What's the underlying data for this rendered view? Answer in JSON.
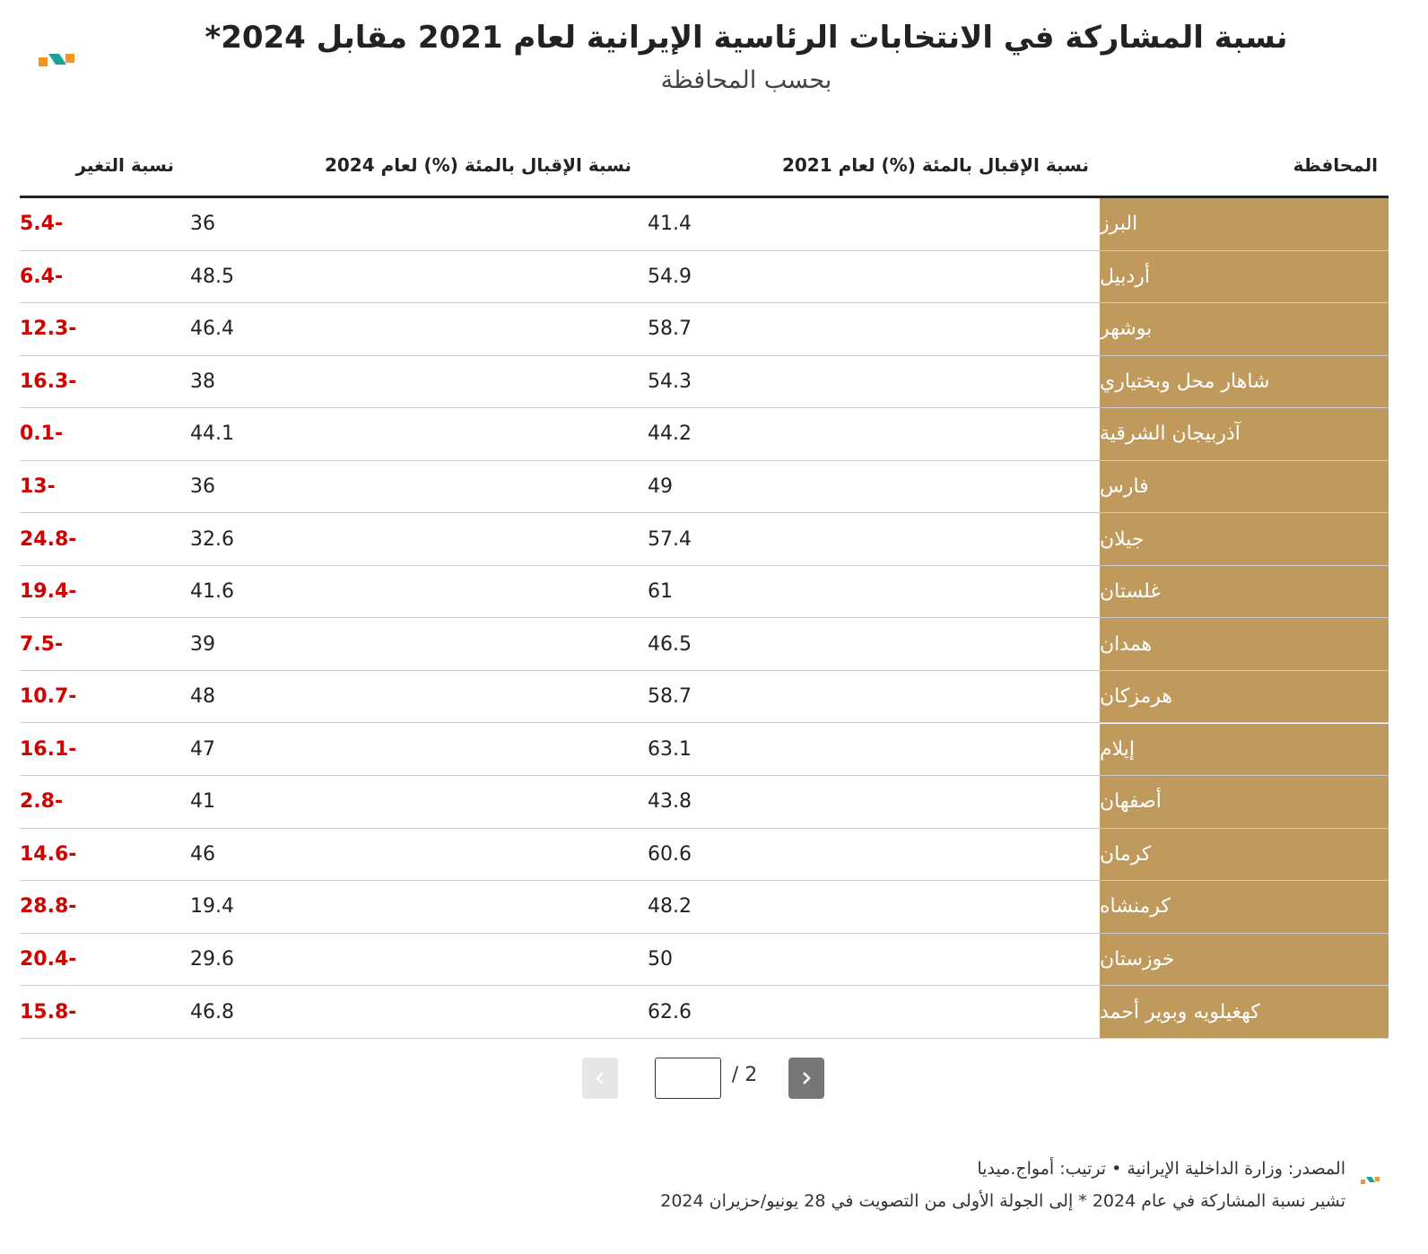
{
  "header": {
    "title": "نسبة المشاركة في الانتخابات الرئاسية الإيرانية لعام 2021 مقابل 2024*",
    "subtitle": "بحسب المحافظة"
  },
  "table": {
    "columns": [
      "المحافظة",
      "نسبة الإقبال بالمئة (%) لعام 2021",
      "نسبة الإقبال بالمئة (%) لعام 2024",
      "نسبة التغير"
    ],
    "rows": [
      [
        "البرز",
        41.4,
        36,
        -5.4
      ],
      [
        "أردبيل",
        54.9,
        48.5,
        -6.4
      ],
      [
        "بوشهر",
        58.7,
        46.4,
        -12.3
      ],
      [
        "شاهار محل وبختياري",
        54.3,
        38,
        -16.3
      ],
      [
        "آذربيجان الشرقية",
        44.2,
        44.1,
        -0.1
      ],
      [
        "فارس",
        49,
        36,
        -13
      ],
      [
        "جيلان",
        57.4,
        32.6,
        -24.8
      ],
      [
        "غلستان",
        61,
        41.6,
        -19.4
      ],
      [
        "همدان",
        46.5,
        39,
        -7.5
      ],
      [
        "هرمزكان",
        58.7,
        48,
        -10.7
      ],
      [
        "إيلام",
        63.1,
        47,
        -16.1
      ],
      [
        "أصفهان",
        43.8,
        41,
        -2.8
      ],
      [
        "كرمان",
        60.6,
        46,
        -14.6
      ],
      [
        "كرمنشاه",
        48.2,
        19.4,
        -28.8
      ],
      [
        "خوزستان",
        50,
        29.6,
        -20.4
      ],
      [
        "كهغيلويه وبوير أحمد",
        62.6,
        46.8,
        -15.8
      ]
    ]
  },
  "pagination": {
    "label": "/ 2"
  },
  "footer": {
    "source": "المصدر: وزارة الداخلية الإيرانية • ترتيب: أمواج.ميديا",
    "note": "تشير نسبة المشاركة في عام 2024 * إلى الجولة الأولى من التصويت في 28 يونيو/حزيران 2024"
  }
}
